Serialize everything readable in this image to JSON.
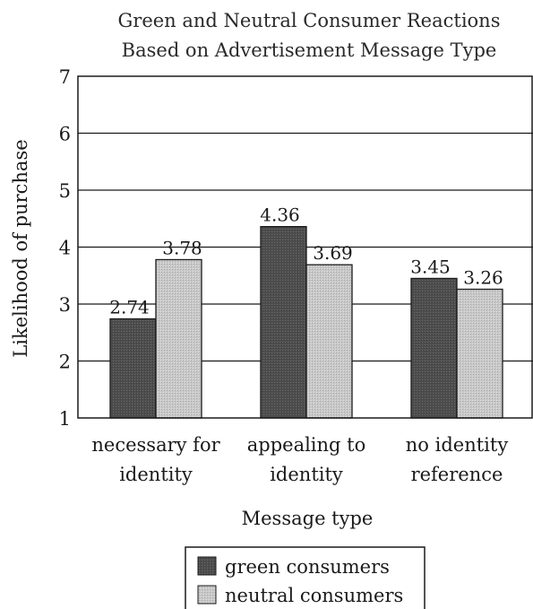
{
  "chart_data": {
    "type": "bar",
    "title": [
      "Green and Neutral Consumer Reactions",
      "Based on Advertisement Message Type"
    ],
    "xlabel": "Message type",
    "ylabel": "Likelihood of purchase",
    "ylim": [
      1,
      7
    ],
    "yticks": [
      1,
      2,
      3,
      4,
      5,
      6,
      7
    ],
    "grid": true,
    "categories": [
      [
        "necessary for",
        "identity"
      ],
      [
        "appealing to",
        "identity"
      ],
      [
        "no identity",
        "reference"
      ]
    ],
    "series": [
      {
        "name": "green consumers",
        "values": [
          2.74,
          4.36,
          3.45
        ],
        "value_labels": [
          "2.74",
          "4.36",
          "3.45"
        ],
        "color": "#555555"
      },
      {
        "name": "neutral consumers",
        "values": [
          3.78,
          3.69,
          3.26
        ],
        "value_labels": [
          "3.78",
          "3.69",
          "3.26"
        ],
        "color": "#c4c4c4"
      }
    ],
    "legend_position": "bottom"
  }
}
